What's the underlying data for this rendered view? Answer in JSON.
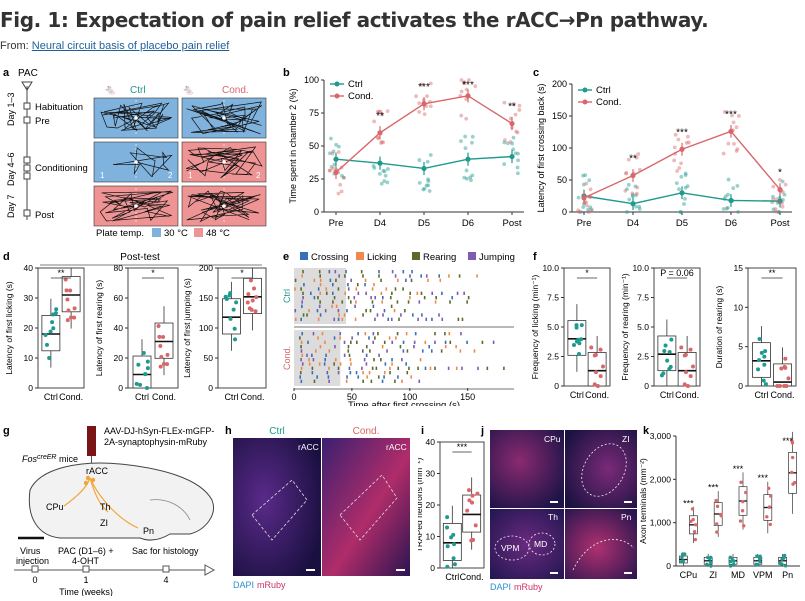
{
  "figure": {
    "title": "Fig. 1: Expectation of pain relief activates the rACC→Pn pathway.",
    "from_label": "From: ",
    "from_link": "Neural circuit basis of placebo pain relief"
  },
  "colors": {
    "ctrl": "#1f9a8e",
    "cond": "#d9676a",
    "ctrl_bg": "#7fb2dc",
    "cond_bg": "#ee9494"
  },
  "panel_labels": [
    "a",
    "b",
    "c",
    "d",
    "e",
    "f",
    "g",
    "h",
    "i",
    "j",
    "k"
  ],
  "panel_a": {
    "pac": "PAC",
    "days": [
      "Day 1–3",
      "Day 4–6",
      "Day 7"
    ],
    "phases": [
      "Habituation",
      "Pre",
      "Conditioning",
      "Post"
    ],
    "ctrl": "Ctrl",
    "cond": "Cond.",
    "plate_temp": "Plate temp.",
    "t30": "30 °C",
    "t48": "48 °C",
    "chamber_nums": [
      "1",
      "2",
      "1",
      "2"
    ]
  },
  "chart_data": [
    {
      "panel": "b",
      "type": "line",
      "categories": [
        "Pre",
        "D4",
        "D5",
        "D6",
        "Post"
      ],
      "ylabel": "Time spent in chamber 2 (%)",
      "ylim": [
        0,
        100
      ],
      "yticks": [
        0,
        25,
        50,
        75,
        100
      ],
      "legend": [
        "Ctrl",
        "Cond."
      ],
      "series": [
        {
          "name": "Ctrl",
          "values": [
            40,
            37,
            33,
            40,
            42
          ]
        },
        {
          "name": "Cond.",
          "values": [
            30,
            60,
            82,
            88,
            67
          ]
        }
      ],
      "significance": [
        "",
        "**",
        "***",
        "***",
        "**"
      ]
    },
    {
      "panel": "c",
      "type": "line",
      "categories": [
        "Pre",
        "D4",
        "D5",
        "D6",
        "Post"
      ],
      "ylabel": "Latency of first crossing back (s)",
      "ylim": [
        0,
        200
      ],
      "yticks": [
        0,
        50,
        100,
        150,
        200
      ],
      "legend": [
        "Ctrl",
        "Cond."
      ],
      "series": [
        {
          "name": "Ctrl",
          "values": [
            25,
            13,
            30,
            18,
            17
          ]
        },
        {
          "name": "Cond.",
          "values": [
            22,
            57,
            98,
            126,
            35
          ]
        }
      ],
      "significance": [
        "",
        "**",
        "***",
        "***",
        "*"
      ]
    },
    {
      "panel": "d1",
      "type": "box",
      "categories": [
        "Ctrl",
        "Cond."
      ],
      "ylabel": "Latency of first licking (s)",
      "ylim": [
        0,
        40
      ],
      "yticks": [
        0,
        10,
        20,
        30,
        40
      ],
      "medians": [
        18,
        31
      ],
      "significance": "**"
    },
    {
      "panel": "d2",
      "type": "box",
      "categories": [
        "Ctrl",
        "Cond."
      ],
      "ylabel": "Latency of first rearing (s)",
      "ylim": [
        0,
        80
      ],
      "yticks": [
        0,
        20,
        40,
        60,
        80
      ],
      "medians": [
        9,
        31
      ],
      "significance": "*"
    },
    {
      "panel": "d3",
      "type": "box",
      "categories": [
        "Ctrl",
        "Cond."
      ],
      "ylabel": "Latency of first jumping (s)",
      "ylim": [
        0,
        200
      ],
      "yticks": [
        0,
        50,
        100,
        150,
        200
      ],
      "medians": [
        118,
        152
      ],
      "significance": "*"
    },
    {
      "panel": "f1",
      "type": "box",
      "categories": [
        "Ctrl",
        "Cond."
      ],
      "ylabel": "Frequency of licking (min⁻¹)",
      "ylim": [
        0,
        10
      ],
      "yticks": [
        "0",
        "2.5",
        "5.0",
        "7.5",
        "10.0"
      ],
      "medians": [
        4.0,
        1.3
      ],
      "significance": "*"
    },
    {
      "panel": "f2",
      "type": "box",
      "categories": [
        "Ctrl",
        "Cond."
      ],
      "ylabel": "Frequency of rearing (min⁻¹)",
      "ylim": [
        0,
        10
      ],
      "yticks": [
        "0",
        "2.5",
        "5.0",
        "7.5",
        "10.0"
      ],
      "medians": [
        2.7,
        1.3
      ],
      "significance": "P = 0.06"
    },
    {
      "panel": "f3",
      "type": "box",
      "categories": [
        "Ctrl",
        "Cond."
      ],
      "ylabel": "Duration of rearing (s)",
      "ylim": [
        0,
        15
      ],
      "yticks": [
        0,
        5,
        10,
        15
      ],
      "medians": [
        3.2,
        0.5
      ],
      "significance": "**"
    },
    {
      "panel": "i",
      "type": "box",
      "categories": [
        "Ctrl",
        "Cond."
      ],
      "ylabel": "TRAPed neurons (mm⁻²)",
      "ylim": [
        0,
        40
      ],
      "yticks": [
        0,
        10,
        20,
        30,
        40
      ],
      "medians": [
        8,
        17
      ],
      "significance": "***"
    },
    {
      "panel": "k",
      "type": "box",
      "categories": [
        "CPu",
        "ZI",
        "MD",
        "VPM",
        "Pn"
      ],
      "ylabel": "Axon terminals (mm⁻²)",
      "ylim": [
        0,
        3000
      ],
      "yticks": [
        "0",
        "1,000",
        "2,000",
        "3,000"
      ],
      "ctrl_medians": [
        150,
        120,
        120,
        120,
        120
      ],
      "cond_medians": [
        950,
        1200,
        1500,
        1350,
        2150
      ],
      "significance": [
        "***",
        "***",
        "***",
        "***",
        "***"
      ]
    }
  ],
  "panel_d": {
    "header": "Post-test"
  },
  "panel_e": {
    "legend": [
      "Crossing",
      "Licking",
      "Rearing",
      "Jumping"
    ],
    "legend_colors": [
      "#3a6fb5",
      "#f08a4b",
      "#5a6b2a",
      "#7d5bb5"
    ],
    "xlabel": "Time after first crossing (s)",
    "xticks": [
      0,
      50,
      100,
      150
    ],
    "groups": [
      "Ctrl",
      "Cond."
    ]
  },
  "panel_g": {
    "virus": "AAV-DJ-hSyn-FLEx-mGFP-\n2A-synaptophysin-mRuby",
    "mouse": "Fos",
    "mouse_sup": "creER",
    "mouse_suffix": " mice",
    "regions": [
      "rACC",
      "CPu",
      "Th",
      "ZI",
      "Pn"
    ],
    "timeline": [
      "Virus injection",
      "PAC (D1–6) + 4-OHT",
      "Sac for histology"
    ],
    "ticks": [
      "0",
      "1",
      "4"
    ],
    "xlabel": "Time (weeks)"
  },
  "panel_h": {
    "ctrl": "Ctrl",
    "cond": "Cond.",
    "region": "rACC",
    "dapi": "DAPI",
    "mruby": "mRuby"
  },
  "panel_j": {
    "regions": [
      "CPu",
      "ZI",
      "Th",
      "Pn"
    ],
    "sub_regions": [
      "VPM",
      "MD"
    ],
    "dapi": "DAPI",
    "mruby": "mRuby"
  }
}
